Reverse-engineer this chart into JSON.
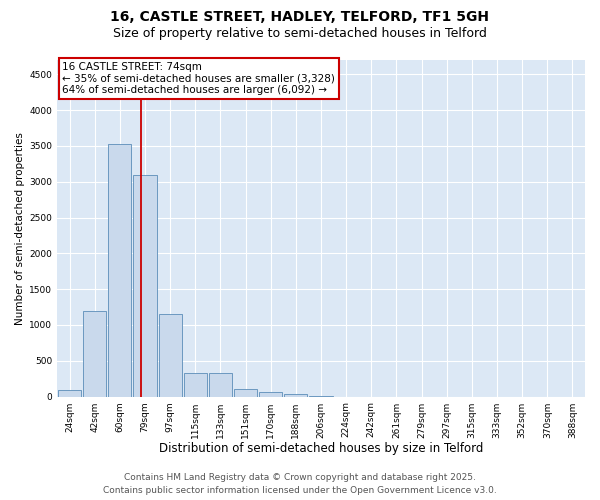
{
  "title": "16, CASTLE STREET, HADLEY, TELFORD, TF1 5GH",
  "subtitle": "Size of property relative to semi-detached houses in Telford",
  "xlabel": "Distribution of semi-detached houses by size in Telford",
  "ylabel": "Number of semi-detached properties",
  "categories": [
    "24sqm",
    "42sqm",
    "60sqm",
    "79sqm",
    "97sqm",
    "115sqm",
    "133sqm",
    "151sqm",
    "170sqm",
    "188sqm",
    "206sqm",
    "224sqm",
    "242sqm",
    "261sqm",
    "279sqm",
    "297sqm",
    "315sqm",
    "333sqm",
    "352sqm",
    "370sqm",
    "388sqm"
  ],
  "values": [
    90,
    1190,
    3530,
    3100,
    1160,
    330,
    330,
    110,
    70,
    30,
    5,
    0,
    0,
    0,
    0,
    0,
    0,
    0,
    0,
    0,
    0
  ],
  "bar_color": "#c9d9ec",
  "bar_edge_color": "#5b8db8",
  "annotation_text_line1": "16 CASTLE STREET: 74sqm",
  "annotation_text_line2": "← 35% of semi-detached houses are smaller (3,328)",
  "annotation_text_line3": "64% of semi-detached houses are larger (6,092) →",
  "annotation_box_color": "#ffffff",
  "annotation_box_edge_color": "#cc0000",
  "vline_color": "#cc0000",
  "vline_x": 2.85,
  "ylim": [
    0,
    4700
  ],
  "yticks": [
    0,
    500,
    1000,
    1500,
    2000,
    2500,
    3000,
    3500,
    4000,
    4500
  ],
  "footer_line1": "Contains HM Land Registry data © Crown copyright and database right 2025.",
  "footer_line2": "Contains public sector information licensed under the Open Government Licence v3.0.",
  "background_color": "#ffffff",
  "plot_bg_color": "#dce8f5",
  "grid_color": "#ffffff",
  "title_fontsize": 10,
  "subtitle_fontsize": 9,
  "xlabel_fontsize": 8.5,
  "ylabel_fontsize": 7.5,
  "tick_fontsize": 6.5,
  "annotation_fontsize": 7.5,
  "footer_fontsize": 6.5
}
